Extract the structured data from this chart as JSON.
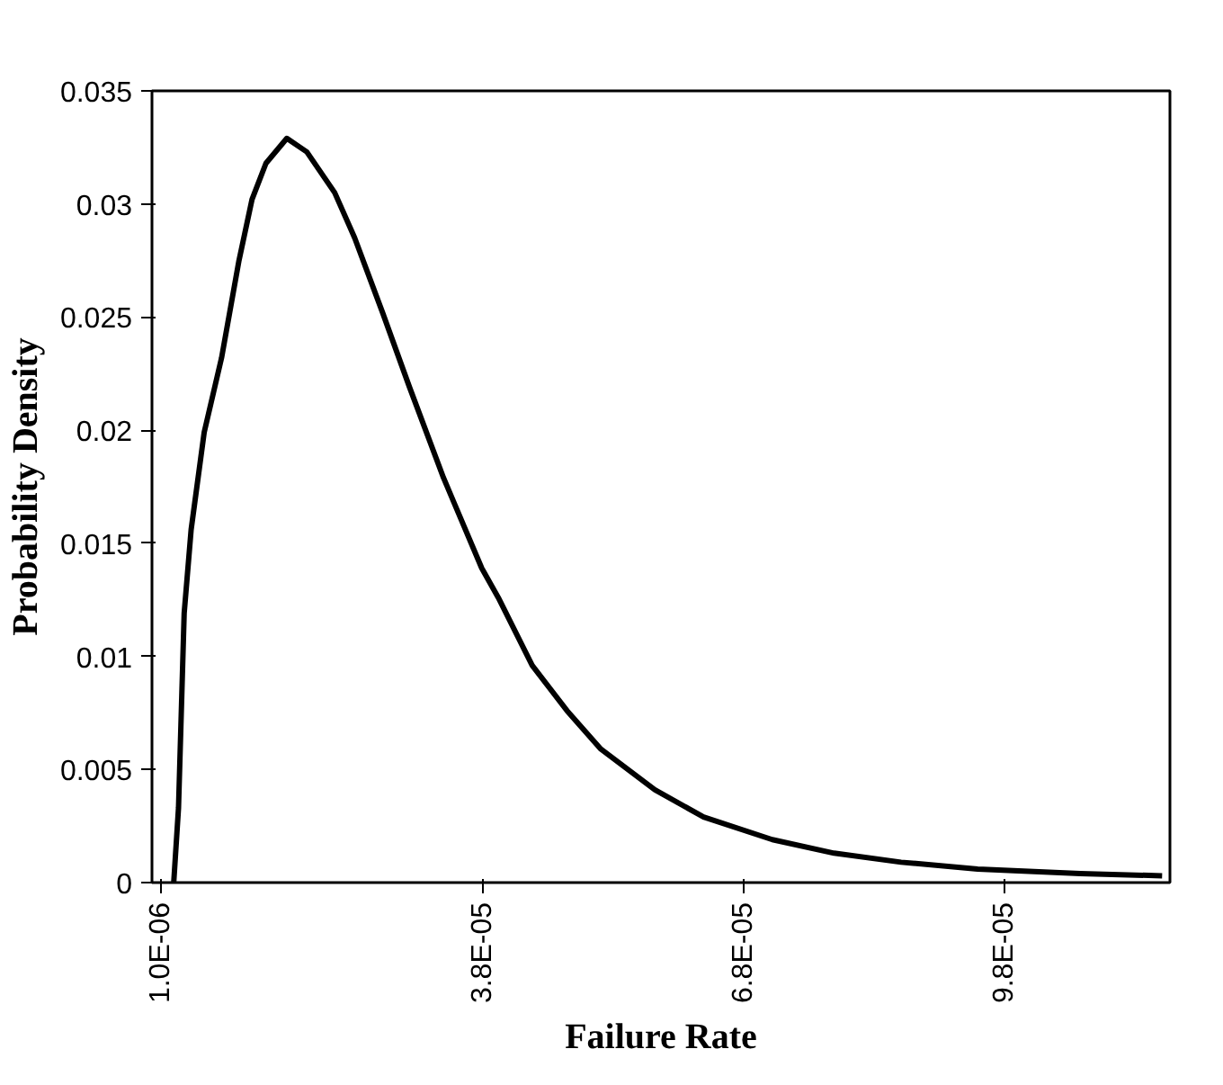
{
  "chart_data": {
    "type": "line",
    "xlabel": "Failure Rate",
    "ylabel": "Probability Density",
    "x": [
      2.5e-06,
      3.05e-06,
      3.7e-06,
      4.5e-06,
      6e-06,
      8e-06,
      1e-05,
      1.15e-05,
      1.31e-05,
      1.55e-05,
      1.78e-05,
      2.1e-05,
      2.33e-05,
      2.65e-05,
      2.96e-05,
      3.35e-05,
      3.79e-05,
      3.98e-05,
      4.37e-05,
      4.77e-05,
      5.16e-05,
      5.78e-05,
      6.34e-05,
      7.13e-05,
      7.84e-05,
      8.61e-05,
      9.49e-05,
      0.0001067,
      0.0001161
    ],
    "series": [
      {
        "color": "#000000",
        "values": [
          0,
          0.0033,
          0.0119,
          0.0156,
          0.0199,
          0.0232,
          0.0275,
          0.0302,
          0.0318,
          0.0329,
          0.0323,
          0.0305,
          0.0285,
          0.0252,
          0.0219,
          0.0179,
          0.0139,
          0.0126,
          0.0096,
          0.0076,
          0.0059,
          0.0041,
          0.0029,
          0.0019,
          0.0013,
          0.0009,
          0.0006,
          0.0004,
          0.0003
        ]
      }
    ],
    "xlim": [
      0,
      0.000117
    ],
    "ylim": [
      0,
      0.035
    ],
    "xticks": [
      {
        "value": 1e-06,
        "label": "1.0E-06"
      },
      {
        "value": 3.8e-05,
        "label": "3.8E-05"
      },
      {
        "value": 6.8e-05,
        "label": "6.8E-05"
      },
      {
        "value": 9.8e-05,
        "label": "9.8E-05"
      }
    ],
    "yticks": [
      0,
      0.005,
      0.01,
      0.015,
      0.02,
      0.025,
      0.03,
      0.035
    ],
    "marker": "none",
    "line_style": "solid"
  }
}
